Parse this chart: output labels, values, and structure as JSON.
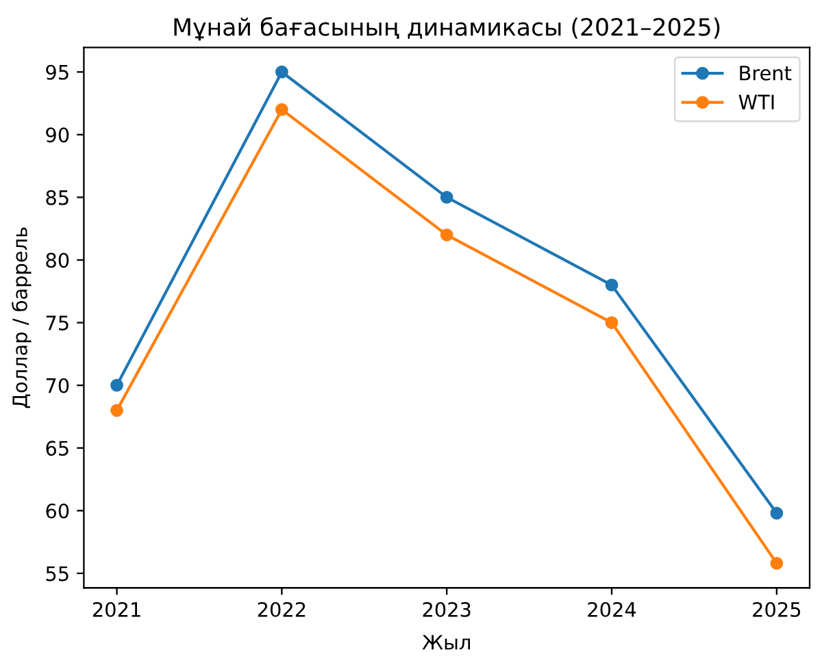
{
  "chart_data": {
    "type": "line",
    "title": "Мұнай бағасының динамикасы (2021–2025)",
    "xlabel": "Жыл",
    "ylabel": "Доллар / баррель",
    "x": [
      2021,
      2022,
      2023,
      2024,
      2025
    ],
    "series": [
      {
        "name": "Brent",
        "color": "#1f77b4",
        "values": [
          70,
          95,
          85,
          78,
          59.8
        ]
      },
      {
        "name": "WTI",
        "color": "#ff7f0e",
        "values": [
          68,
          92,
          82,
          75,
          55.8
        ]
      }
    ],
    "xlim": [
      2020.8,
      2025.2
    ],
    "xticks": [
      2021,
      2022,
      2023,
      2024,
      2025
    ],
    "ylim": [
      53.84,
      96.96
    ],
    "yticks": [
      55,
      60,
      65,
      70,
      75,
      80,
      85,
      90,
      95
    ],
    "legend": "top right",
    "marker": "circle",
    "line_style": "solid",
    "grid": false
  }
}
